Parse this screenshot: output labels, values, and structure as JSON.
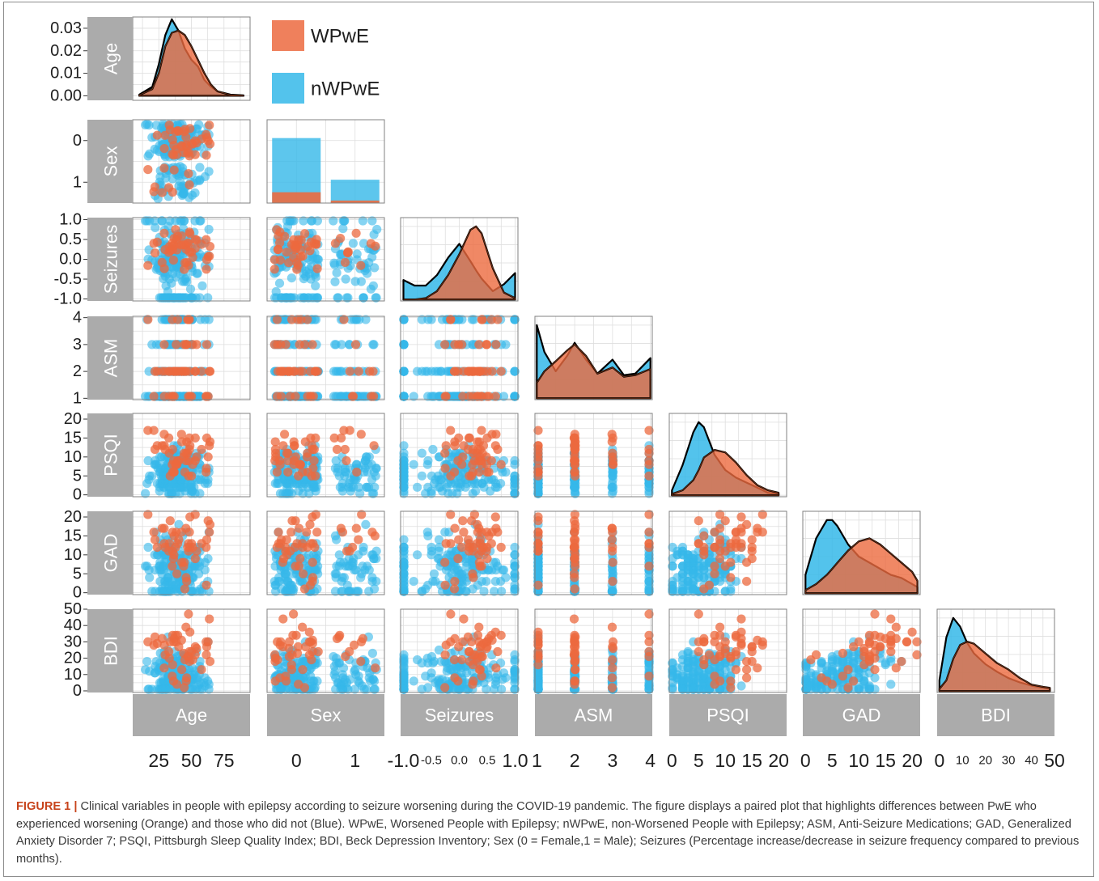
{
  "colors": {
    "worsened": "#EC6A3F",
    "not_worsened": "#35B8E9",
    "strip": "#ABABAB",
    "grid": "#DEDEDE",
    "panel_border": "#808080",
    "caption_label": "#C7431B"
  },
  "legend": [
    {
      "key": "worsened",
      "label": "WPwE"
    },
    {
      "key": "not_worsened",
      "label": "nWPwE"
    }
  ],
  "caption": {
    "label": "FIGURE 1 |",
    "text": "Clinical variables in people with epilepsy according to seizure worsening during the COVID-19 pandemic. The figure displays a paired plot that highlights differences between PwE who experienced worsening (Orange) and those who did not (Blue). WPwE, Worsened People with Epilepsy; nWPwE, non-Worsened People with Epilepsy; ASM, Anti-Seizure Medications; GAD, Generalized Anxiety Disorder 7; PSQI, Pittsburgh Sleep Quality Index; BDI, Beck Depression Inventory; Sex (0 = Female,1 = Male); Seizures (Percentage increase/decrease in seizure frequency compared to previous months)."
  },
  "chart_data": {
    "type": "scatter",
    "subtype": "pairs-plot (lower triangle scatter, diagonal density / bar)",
    "variables": [
      {
        "name": "Age",
        "range": [
          5,
          95
        ],
        "x_ticks": [
          "25",
          "50",
          "75"
        ],
        "x_tick_values": [
          25,
          50,
          75
        ],
        "y_ticks": [
          "0.00",
          "0.01",
          "0.02",
          "0.03"
        ],
        "y_tick_values": [
          0,
          0.01,
          0.02,
          0.03
        ],
        "y_range": [
          -0.002,
          0.035
        ]
      },
      {
        "name": "Sex",
        "range": [
          -0.5,
          1.5
        ],
        "x_ticks": [
          "0",
          "1"
        ],
        "x_tick_values": [
          0,
          1
        ],
        "y_ticks": [
          "0",
          "1"
        ],
        "y_tick_values": [
          0,
          1
        ],
        "y_reversed": true
      },
      {
        "name": "Seizures",
        "range": [
          -1.05,
          1.05
        ],
        "x_ticks": [
          "-1.0",
          "-0.5",
          "0.0",
          "0.5",
          "1.0"
        ],
        "x_tick_values": [
          -1,
          -0.5,
          0,
          0.5,
          1
        ],
        "y_ticks": [
          "-1.0",
          "-0.5",
          "0.0",
          "0.5",
          "1.0"
        ],
        "y_tick_values": [
          -1,
          -0.5,
          0,
          0.5,
          1
        ]
      },
      {
        "name": "ASM",
        "range": [
          0.95,
          4.05
        ],
        "x_ticks": [
          "1",
          "2",
          "3",
          "4"
        ],
        "x_tick_values": [
          1,
          2,
          3,
          4
        ],
        "y_ticks": [
          "1",
          "2",
          "3",
          "4"
        ],
        "y_tick_values": [
          1,
          2,
          3,
          4
        ]
      },
      {
        "name": "PSQI",
        "range": [
          -0.5,
          21.5
        ],
        "x_ticks": [
          "0",
          "5",
          "10",
          "15",
          "20"
        ],
        "x_tick_values": [
          0,
          5,
          10,
          15,
          20
        ],
        "y_ticks": [
          "0",
          "5",
          "10",
          "15",
          "20"
        ],
        "y_tick_values": [
          0,
          5,
          10,
          15,
          20
        ]
      },
      {
        "name": "GAD",
        "range": [
          -0.5,
          21.5
        ],
        "x_ticks": [
          "0",
          "5",
          "10",
          "15",
          "20"
        ],
        "x_tick_values": [
          0,
          5,
          10,
          15,
          20
        ],
        "y_ticks": [
          "0",
          "5",
          "10",
          "15",
          "20"
        ],
        "y_tick_values": [
          0,
          5,
          10,
          15,
          20
        ]
      },
      {
        "name": "BDI",
        "range": [
          -1,
          50
        ],
        "x_ticks": [
          "0",
          "10",
          "20",
          "30",
          "40",
          "50"
        ],
        "x_tick_values": [
          0,
          10,
          20,
          30,
          40,
          50
        ],
        "y_ticks": [
          "0",
          "10",
          "20",
          "30",
          "40",
          "50"
        ],
        "y_tick_values": [
          0,
          10,
          20,
          30,
          40,
          50
        ]
      }
    ],
    "series": [
      {
        "name": "WPwE",
        "color_key": "worsened",
        "alpha": 0.7
      },
      {
        "name": "nWPwE",
        "color_key": "not_worsened",
        "alpha": 0.6
      }
    ],
    "diagonal_density": {
      "Age": {
        "x": [
          10,
          20,
          25,
          30,
          35,
          40,
          45,
          50,
          55,
          60,
          65,
          70,
          80,
          90
        ],
        "nWPwE": [
          0.0005,
          0.004,
          0.014,
          0.027,
          0.034,
          0.029,
          0.021,
          0.016,
          0.013,
          0.007,
          0.004,
          0.002,
          0.0005,
          0.0002
        ],
        "WPwE": [
          0.0003,
          0.003,
          0.01,
          0.022,
          0.028,
          0.029,
          0.027,
          0.022,
          0.016,
          0.01,
          0.005,
          0.002,
          0.0004,
          0.0001
        ]
      },
      "Seizures": {
        "x": [
          -1,
          -0.8,
          -0.6,
          -0.4,
          -0.2,
          0,
          0.2,
          0.3,
          0.4,
          0.6,
          0.8,
          1
        ],
        "nWPwE": [
          0.28,
          0.2,
          0.2,
          0.35,
          0.6,
          0.8,
          0.55,
          0.42,
          0.3,
          0.12,
          0.22,
          0.38
        ],
        "WPwE": [
          0.0,
          0.0,
          0.02,
          0.12,
          0.35,
          0.65,
          1.0,
          1.05,
          0.95,
          0.45,
          0.1,
          0.02
        ]
      },
      "ASM": {
        "x": [
          1,
          1.2,
          1.5,
          1.8,
          2,
          2.3,
          2.6,
          3,
          3.3,
          3.6,
          4
        ],
        "nWPwE": [
          0.95,
          0.6,
          0.35,
          0.55,
          0.72,
          0.5,
          0.32,
          0.5,
          0.3,
          0.32,
          0.52
        ],
        "WPwE": [
          0.2,
          0.35,
          0.48,
          0.62,
          0.7,
          0.55,
          0.32,
          0.4,
          0.28,
          0.3,
          0.38
        ]
      },
      "PSQI": {
        "x": [
          0,
          2,
          4,
          5,
          6,
          8,
          10,
          12,
          14,
          16,
          18,
          20
        ],
        "nWPwE": [
          0.02,
          0.12,
          0.25,
          0.29,
          0.27,
          0.16,
          0.1,
          0.07,
          0.05,
          0.03,
          0.01,
          0.005
        ],
        "WPwE": [
          0.005,
          0.02,
          0.06,
          0.1,
          0.15,
          0.18,
          0.17,
          0.13,
          0.08,
          0.04,
          0.02,
          0.01
        ]
      },
      "GAD": {
        "x": [
          0,
          2,
          4,
          5,
          6,
          8,
          10,
          12,
          14,
          16,
          18,
          20,
          21
        ],
        "nWPwE": [
          0.03,
          0.09,
          0.12,
          0.12,
          0.11,
          0.08,
          0.06,
          0.05,
          0.04,
          0.03,
          0.025,
          0.015,
          0.01
        ],
        "WPwE": [
          0.005,
          0.015,
          0.03,
          0.04,
          0.05,
          0.07,
          0.085,
          0.09,
          0.08,
          0.065,
          0.05,
          0.035,
          0.02
        ]
      },
      "BDI": {
        "x": [
          0,
          3,
          6,
          9,
          12,
          15,
          20,
          25,
          30,
          35,
          40,
          45,
          48
        ],
        "nWPwE": [
          0.01,
          0.05,
          0.068,
          0.06,
          0.045,
          0.035,
          0.025,
          0.018,
          0.012,
          0.008,
          0.005,
          0.003,
          0.002
        ],
        "WPwE": [
          0.002,
          0.01,
          0.03,
          0.043,
          0.046,
          0.044,
          0.035,
          0.026,
          0.02,
          0.012,
          0.006,
          0.004,
          0.003
        ]
      }
    },
    "sex_bars": [
      {
        "category": "0",
        "nWPwE": 0.78,
        "WPwE": 0.13
      },
      {
        "category": "1",
        "nWPwE": 0.28,
        "WPwE": 0.03
      }
    ]
  }
}
